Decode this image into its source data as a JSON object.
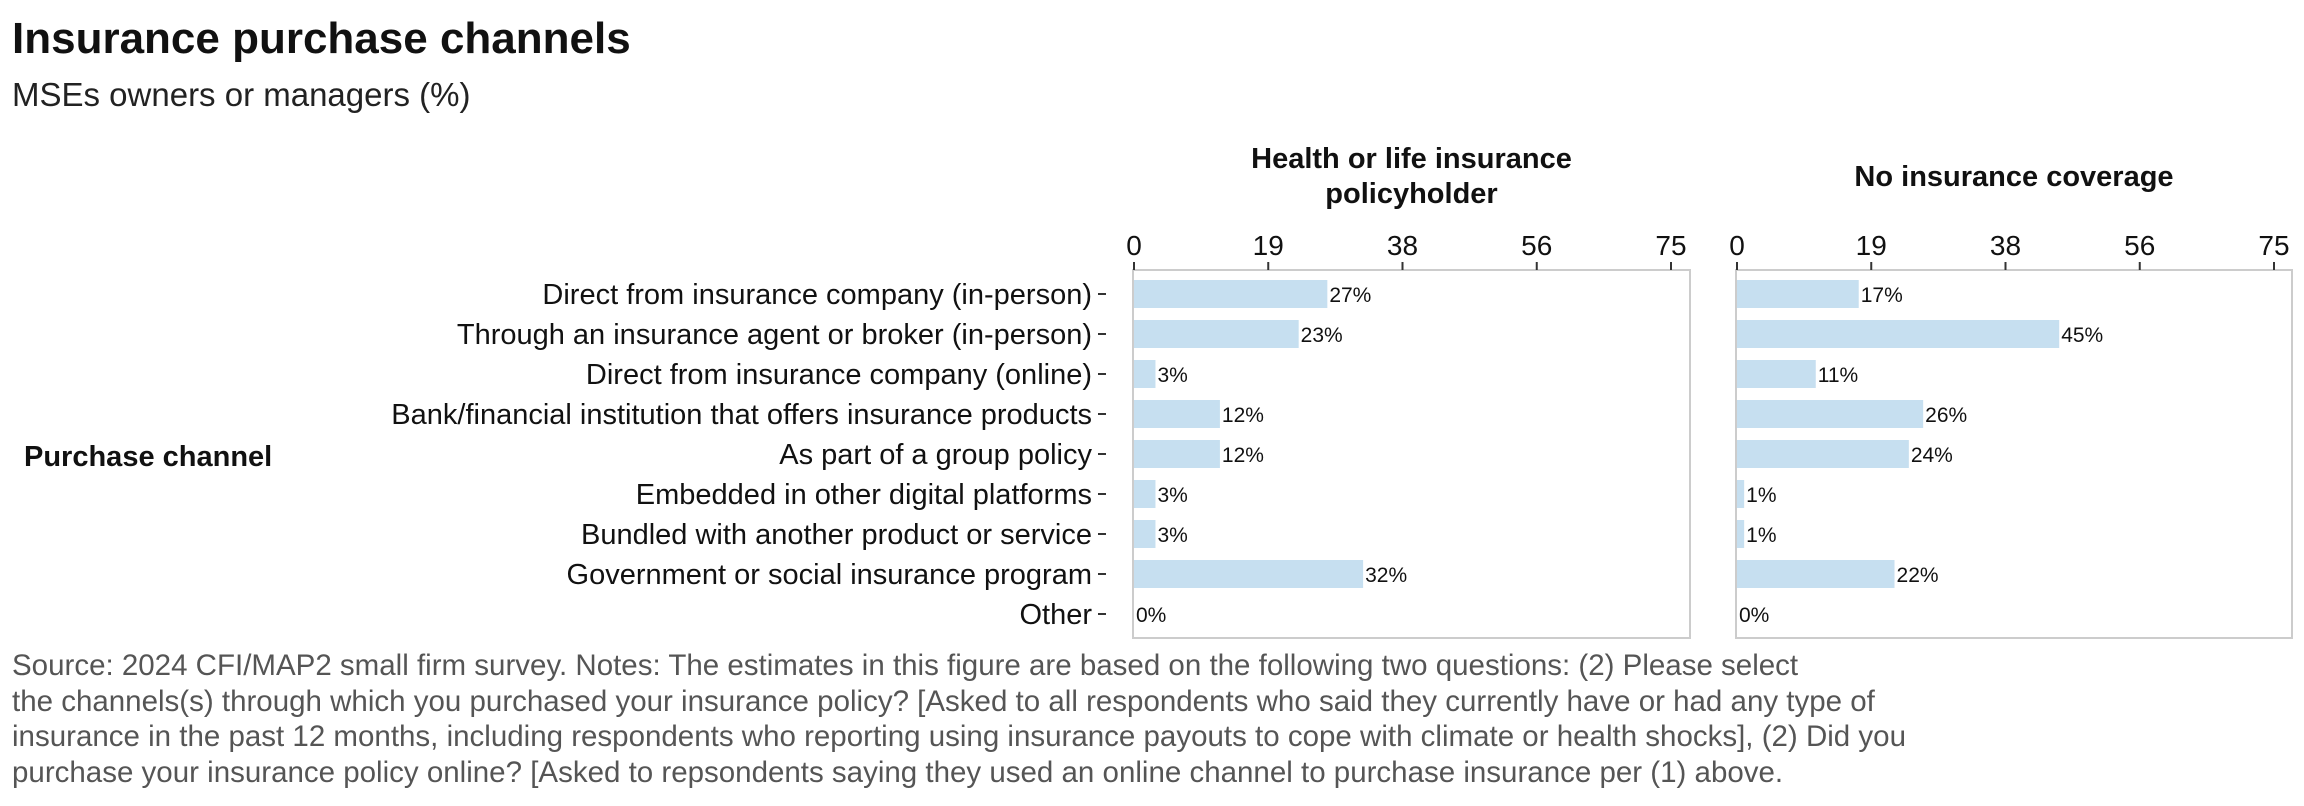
{
  "title": "Insurance purchase channels",
  "subtitle": "MSEs owners or managers (%)",
  "note_lines": [
    "Source: 2024 CFI/MAP2 small firm survey. Notes: The estimates in this figure are based on the following two questions: (2) Please select",
    "the channels(s) through which you purchased your insurance policy? [Asked to all respondents who said they currently have or had any type of",
    "insurance in the past 12 months, including respondents who reporting using insurance payouts to cope with climate or health shocks], (2) Did you",
    "purchase your insurance policy online? [Asked to repsondents saying they used an online channel to purchase insurance per (1) above."
  ],
  "chart_data": {
    "type": "bar",
    "orientation": "horizontal",
    "title": "Insurance purchase channels",
    "subtitle": "MSEs owners or managers (%)",
    "ylabel": "Purchase channel",
    "xlim": [
      0,
      75
    ],
    "x_ticks": [
      "0",
      "19",
      "38",
      "56",
      "75"
    ],
    "x_tick_values": [
      0,
      18.75,
      37.5,
      56.25,
      75
    ],
    "grid": false,
    "bar_color": "#c6dff0",
    "categories": [
      "Direct from insurance company (in-person)",
      "Through an insurance agent or broker (in-person)",
      "Direct from insurance company (online)",
      "Bank/financial institution that offers insurance products",
      "As part of a group policy",
      "Embedded in other digital platforms",
      "Bundled with another product or service",
      "Government or social insurance program",
      "Other"
    ],
    "facets": [
      {
        "name_lines": [
          "Health or life insurance",
          "policyholder"
        ],
        "values": [
          27,
          23,
          3,
          12,
          12,
          3,
          3,
          32,
          0
        ],
        "labels": [
          "27%",
          "23%",
          "3%",
          "12%",
          "12%",
          "3%",
          "3%",
          "32%",
          "0%"
        ]
      },
      {
        "name_lines": [
          "No insurance coverage"
        ],
        "values": [
          17,
          45,
          11,
          26,
          24,
          1,
          1,
          22,
          0
        ],
        "labels": [
          "17%",
          "45%",
          "11%",
          "26%",
          "24%",
          "1%",
          "1%",
          "22%",
          "0%"
        ]
      }
    ]
  }
}
